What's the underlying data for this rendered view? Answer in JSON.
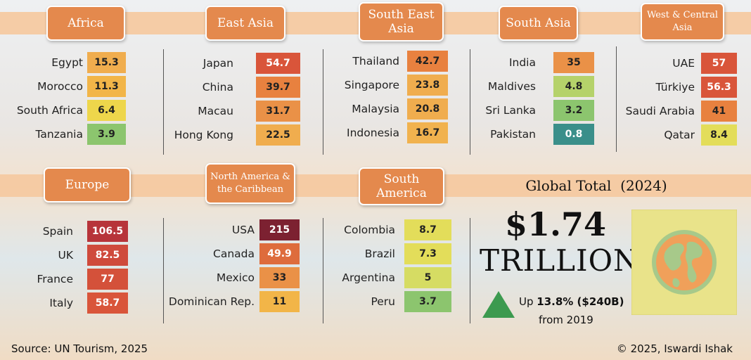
{
  "chart_data": {
    "type": "table",
    "title": "Global Total",
    "title_year": "(2024)",
    "regions": [
      {
        "name": "Africa",
        "countries": [
          {
            "name": "Egypt",
            "value": 15.3,
            "color": "#f0ad4e"
          },
          {
            "name": "Morocco",
            "value": 11.3,
            "color": "#f2b548"
          },
          {
            "name": "South Africa",
            "value": 6.4,
            "color": "#eed64b"
          },
          {
            "name": "Tanzania",
            "value": 3.9,
            "color": "#8cc56e"
          }
        ]
      },
      {
        "name": "East Asia",
        "countries": [
          {
            "name": "Japan",
            "value": 54.7,
            "color": "#d9553a"
          },
          {
            "name": "China",
            "value": 39.7,
            "color": "#e8813f"
          },
          {
            "name": "Macau",
            "value": 31.7,
            "color": "#ea9147"
          },
          {
            "name": "Hong Kong",
            "value": 22.5,
            "color": "#f0ad4e"
          }
        ]
      },
      {
        "name": "South East Asia",
        "countries": [
          {
            "name": "Thailand",
            "value": 42.7,
            "color": "#e8813f"
          },
          {
            "name": "Singapore",
            "value": 23.8,
            "color": "#f0ad4e"
          },
          {
            "name": "Malaysia",
            "value": 20.8,
            "color": "#f0ad4e"
          },
          {
            "name": "Indonesia",
            "value": 16.7,
            "color": "#f1b24e"
          }
        ]
      },
      {
        "name": "South Asia",
        "countries": [
          {
            "name": "India",
            "value": 35,
            "color": "#ea9147"
          },
          {
            "name": "Maldives",
            "value": 4.8,
            "color": "#b5d26a"
          },
          {
            "name": "Sri Lanka",
            "value": 3.2,
            "color": "#8cc56e"
          },
          {
            "name": "Pakistan",
            "value": 0.8,
            "color": "#3a8f8a"
          }
        ]
      },
      {
        "name": "West & Central Asia",
        "countries": [
          {
            "name": "UAE",
            "value": 57,
            "color": "#d9553a"
          },
          {
            "name": "Türkiye",
            "value": 56.3,
            "color": "#d9553a"
          },
          {
            "name": "Saudi Arabia",
            "value": 41,
            "color": "#e8813f"
          },
          {
            "name": "Qatar",
            "value": 8.4,
            "color": "#e3dd5a"
          }
        ]
      },
      {
        "name": "Europe",
        "countries": [
          {
            "name": "Spain",
            "value": 106.5,
            "color": "#b7343a"
          },
          {
            "name": "UK",
            "value": 82.5,
            "color": "#cf4a3c"
          },
          {
            "name": "France",
            "value": 77,
            "color": "#d4513a"
          },
          {
            "name": "Italy",
            "value": 58.7,
            "color": "#d9553a"
          }
        ]
      },
      {
        "name": "North America & the Caribbean",
        "countries": [
          {
            "name": "USA",
            "value": 215,
            "color": "#7c2131"
          },
          {
            "name": "Canada",
            "value": 49.9,
            "color": "#de6c3c"
          },
          {
            "name": "Mexico",
            "value": 33,
            "color": "#ea9147"
          },
          {
            "name": "Dominican Rep.",
            "value": 11,
            "color": "#f2b548"
          }
        ]
      },
      {
        "name": "South America",
        "countries": [
          {
            "name": "Colombia",
            "value": 8.7,
            "color": "#e3dd5a"
          },
          {
            "name": "Brazil",
            "value": 7.3,
            "color": "#e3dd5a"
          },
          {
            "name": "Argentina",
            "value": 5,
            "color": "#d6dc63"
          },
          {
            "name": "Peru",
            "value": 3.7,
            "color": "#8cc56e"
          }
        ]
      }
    ],
    "global_total": {
      "amount": "$1.74",
      "unit": "TRILLION",
      "growth_prefix": "Up",
      "growth_value": "13.8% ($240B)",
      "growth_suffix": "from 2019",
      "trend": "up"
    }
  },
  "source": "Source: UN Tourism, 2025",
  "copyright": "© 2025, Iswardi Ishak",
  "colors": {
    "tab_fill": "#e4894d",
    "band": "#f5c9a0",
    "up_arrow": "#3c9a4f",
    "globe_ocean": "#f0a05a",
    "globe_land": "#a7c98a",
    "globe_box": "#e9e38a"
  }
}
